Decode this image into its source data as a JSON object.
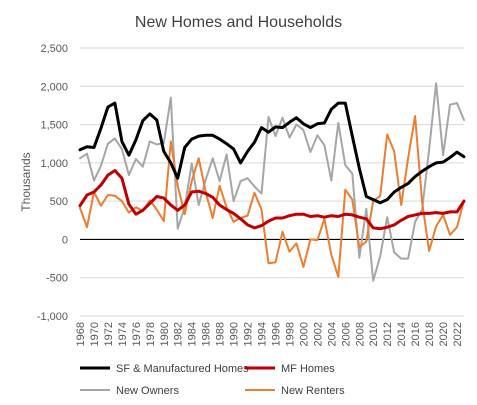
{
  "chart_data": {
    "type": "line",
    "title": "New Homes and Households",
    "ylabel": "Thousands",
    "xlabel": "",
    "ylim": [
      -1000,
      2500
    ],
    "yticks": [
      -1000,
      -500,
      0,
      500,
      1000,
      1500,
      2000,
      2500
    ],
    "ytick_labels": [
      "-1,000",
      "-500",
      "0",
      "500",
      "1,000",
      "1,500",
      "2,000",
      "2,500"
    ],
    "xlim": [
      1968,
      2023
    ],
    "xticks": [
      1968,
      1970,
      1972,
      1974,
      1976,
      1978,
      1980,
      1982,
      1984,
      1986,
      1988,
      1990,
      1992,
      1994,
      1996,
      1998,
      2000,
      2002,
      2004,
      2006,
      2008,
      2010,
      2012,
      2014,
      2016,
      2018,
      2020,
      2022
    ],
    "grid": true,
    "legend_position": "bottom",
    "x": [
      1968,
      1969,
      1970,
      1971,
      1972,
      1973,
      1974,
      1975,
      1976,
      1977,
      1978,
      1979,
      1980,
      1981,
      1982,
      1983,
      1984,
      1985,
      1986,
      1987,
      1988,
      1989,
      1990,
      1991,
      1992,
      1993,
      1994,
      1995,
      1996,
      1997,
      1998,
      1999,
      2000,
      2001,
      2002,
      2003,
      2004,
      2005,
      2006,
      2007,
      2008,
      2009,
      2010,
      2011,
      2012,
      2013,
      2014,
      2015,
      2016,
      2017,
      2018,
      2019,
      2020,
      2021,
      2022,
      2023
    ],
    "series": [
      {
        "name": "SF & Manufactured Homes",
        "color": "#000000",
        "width": 3,
        "values": [
          1170,
          1210,
          1200,
          1450,
          1730,
          1780,
          1280,
          1100,
          1300,
          1550,
          1640,
          1560,
          1150,
          1000,
          800,
          1200,
          1310,
          1350,
          1360,
          1360,
          1310,
          1250,
          1180,
          1000,
          1150,
          1270,
          1460,
          1400,
          1470,
          1460,
          1530,
          1590,
          1510,
          1460,
          1510,
          1520,
          1700,
          1780,
          1780,
          1350,
          930,
          560,
          520,
          480,
          520,
          620,
          680,
          730,
          820,
          890,
          950,
          1000,
          1010,
          1070,
          1140,
          1080
        ]
      },
      {
        "name": "MF Homes",
        "color": "#c00000",
        "width": 3,
        "values": [
          440,
          580,
          620,
          710,
          840,
          900,
          800,
          460,
          330,
          380,
          470,
          560,
          540,
          450,
          380,
          450,
          620,
          630,
          600,
          550,
          450,
          390,
          340,
          270,
          190,
          150,
          180,
          240,
          280,
          280,
          310,
          330,
          330,
          300,
          310,
          290,
          310,
          300,
          330,
          320,
          290,
          270,
          150,
          140,
          160,
          190,
          250,
          300,
          320,
          340,
          340,
          350,
          340,
          360,
          360,
          500
        ]
      },
      {
        "name": "New Owners",
        "color": "#a6a6a6",
        "width": 2,
        "values": [
          1060,
          1120,
          770,
          960,
          1250,
          1320,
          1180,
          840,
          1050,
          950,
          1280,
          1240,
          1260,
          1850,
          140,
          420,
          990,
          450,
          780,
          1060,
          760,
          1110,
          500,
          760,
          800,
          690,
          600,
          1600,
          1350,
          1590,
          1330,
          1500,
          1430,
          1140,
          1360,
          1230,
          770,
          1520,
          970,
          860,
          -240,
          400,
          -540,
          -220,
          290,
          -170,
          -250,
          -250,
          230,
          390,
          1170,
          2040,
          1100,
          1760,
          1780,
          1560
        ]
      },
      {
        "name": "New Renters",
        "color": "#ed7d31",
        "width": 2,
        "values": [
          410,
          160,
          620,
          440,
          580,
          570,
          500,
          350,
          420,
          370,
          510,
          390,
          240,
          1280,
          700,
          330,
          760,
          1060,
          620,
          280,
          700,
          420,
          230,
          280,
          310,
          610,
          390,
          -310,
          -300,
          100,
          -160,
          -50,
          -360,
          0,
          -10,
          270,
          -200,
          -490,
          650,
          520,
          -100,
          -30,
          500,
          570,
          1370,
          1150,
          450,
          1060,
          1610,
          490,
          -150,
          170,
          320,
          60,
          160,
          510
        ]
      }
    ]
  }
}
